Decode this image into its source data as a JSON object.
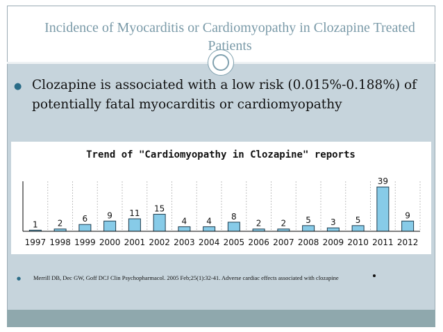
{
  "slide": {
    "title": "Incidence of Myocarditis or Cardiomyopathy in Clozapine Treated Patients",
    "bullet_main": "Clozapine is associated with a low risk (0.015%-0.188%) of potentially fatal myocarditis or cardiomyopathy",
    "reference": "Merrill DB, Dec GW, Goff DCJ Clin Psychopharmacol. 2005 Feb;25(1):32-41. Adverse cardiac effects associated with clozapine"
  },
  "colors": {
    "frame": "#c6d4dc",
    "title_text": "#7a9aa8",
    "bar_fill": "#87cbe8",
    "bar_stroke": "#1c3b4d",
    "footer": "#8fa8ad"
  },
  "chart_data": {
    "type": "bar",
    "title": "Trend of \"Cardiomyopathy in Clozapine\" reports",
    "categories": [
      "1997",
      "1998",
      "1999",
      "2000",
      "2001",
      "2002",
      "2003",
      "2004",
      "2005",
      "2006",
      "2007",
      "2008",
      "2009",
      "2010",
      "2011",
      "2012"
    ],
    "values": [
      1,
      2,
      6,
      9,
      11,
      15,
      4,
      4,
      8,
      2,
      2,
      5,
      3,
      5,
      39,
      9
    ],
    "ylim": [
      0,
      44
    ],
    "grid": true
  }
}
